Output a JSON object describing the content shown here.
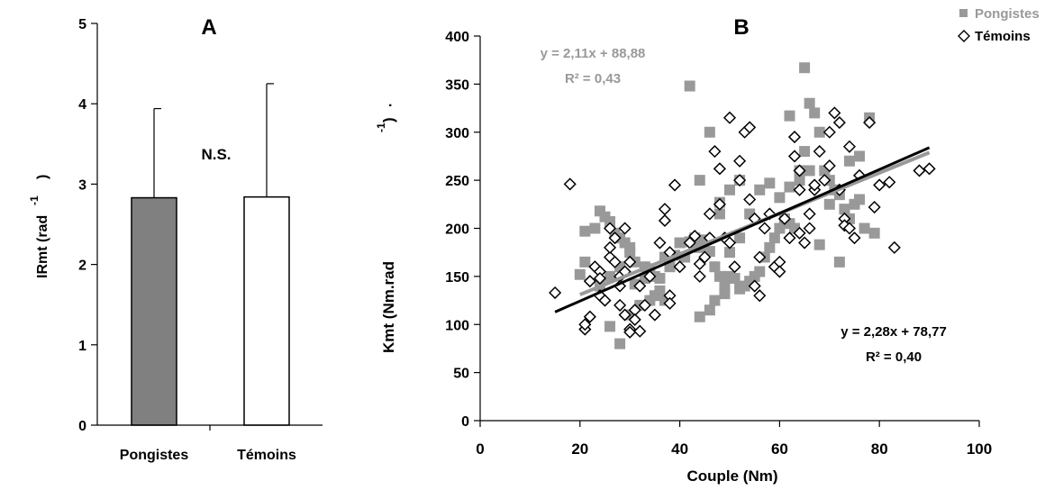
{
  "chart_data": [
    {
      "type": "bar",
      "panel_label": "A",
      "ylabel_main": "IRmt (rad",
      "ylabel_sup": "-1",
      "ylabel_close": ")",
      "ylim": [
        0,
        5
      ],
      "yticks": [
        "0",
        "1",
        "2",
        "3",
        "4",
        "5"
      ],
      "categories": [
        "Pongistes",
        "Témoins"
      ],
      "values": [
        2.83,
        2.84
      ],
      "errors_upper": [
        3.94,
        4.25
      ],
      "bar_colors": [
        "#808080",
        "#ffffff"
      ],
      "annotation": "N.S."
    },
    {
      "type": "scatter",
      "panel_label": "B",
      "xlabel": "Couple (Nm)",
      "ylabel_main": "Kmt (Nm.rad",
      "ylabel_sup": "-1",
      "ylabel_close": ")",
      "xlim": [
        0,
        100
      ],
      "ylim": [
        0,
        400
      ],
      "xticks": [
        "0",
        "20",
        "40",
        "60",
        "80",
        "100"
      ],
      "yticks": [
        "0",
        "50",
        "100",
        "150",
        "200",
        "250",
        "300",
        "350",
        "400"
      ],
      "legend_position": "top-right",
      "series": [
        {
          "name": "Pongistes",
          "marker": "square",
          "color": "#999999",
          "equation": "y = 2,11x + 88,88",
          "r2": "R² = 0,43",
          "fit": {
            "slope": 2.11,
            "intercept": 88.88,
            "x_range": [
              20,
              90
            ]
          },
          "points": [
            [
              20,
              152
            ],
            [
              21,
              165
            ],
            [
              21,
              197
            ],
            [
              23,
              200
            ],
            [
              24,
              218
            ],
            [
              25,
              212
            ],
            [
              26,
              207
            ],
            [
              27,
              195
            ],
            [
              28,
              190
            ],
            [
              29,
              185
            ],
            [
              30,
              180
            ],
            [
              30,
              175
            ],
            [
              31,
              165
            ],
            [
              33,
              160
            ],
            [
              34,
              158
            ],
            [
              35,
              150
            ],
            [
              36,
              148
            ],
            [
              37,
              170
            ],
            [
              38,
              160
            ],
            [
              39,
              172
            ],
            [
              40,
              185
            ],
            [
              41,
              170
            ],
            [
              42,
              186
            ],
            [
              43,
              190
            ],
            [
              44,
              180
            ],
            [
              45,
              188
            ],
            [
              46,
              176
            ],
            [
              47,
              160
            ],
            [
              48,
              150
            ],
            [
              49,
              140
            ],
            [
              50,
              150
            ],
            [
              51,
              148
            ],
            [
              52,
              137
            ],
            [
              53,
              140
            ],
            [
              54,
              145
            ],
            [
              55,
              150
            ],
            [
              56,
              155
            ],
            [
              57,
              170
            ],
            [
              58,
              180
            ],
            [
              59,
              190
            ],
            [
              60,
              200
            ],
            [
              61,
              210
            ],
            [
              62,
              205
            ],
            [
              63,
              200
            ],
            [
              64,
              250
            ],
            [
              65,
              280
            ],
            [
              66,
              330
            ],
            [
              67,
              320
            ],
            [
              68,
              300
            ],
            [
              69,
              260
            ],
            [
              70,
              250
            ],
            [
              71,
              240
            ],
            [
              72,
              235
            ],
            [
              73,
              220
            ],
            [
              74,
              210
            ],
            [
              75,
              225
            ],
            [
              76,
              230
            ],
            [
              77,
              200
            ],
            [
              78,
              315
            ],
            [
              79,
              195
            ],
            [
              42,
              348
            ],
            [
              44,
              250
            ],
            [
              46,
              300
            ],
            [
              65,
              367
            ],
            [
              62,
              317
            ],
            [
              72,
              165
            ],
            [
              68,
              183
            ],
            [
              44,
              108
            ],
            [
              46,
              115
            ],
            [
              28,
              80
            ],
            [
              26,
              98
            ],
            [
              30,
              110
            ],
            [
              32,
              120
            ],
            [
              34,
              125
            ],
            [
              36,
              135
            ],
            [
              24,
              140
            ],
            [
              26,
              150
            ],
            [
              28,
              160
            ],
            [
              48,
              215
            ],
            [
              50,
              240
            ],
            [
              52,
              250
            ],
            [
              54,
              215
            ],
            [
              56,
              240
            ],
            [
              58,
              247
            ],
            [
              60,
              232
            ],
            [
              62,
              243
            ],
            [
              64,
              260
            ],
            [
              66,
              260
            ],
            [
              70,
              225
            ],
            [
              74,
              270
            ],
            [
              76,
              275
            ],
            [
              50,
              175
            ],
            [
              52,
              190
            ],
            [
              48,
              227
            ],
            [
              47,
              125
            ],
            [
              49,
              132
            ],
            [
              31,
              142
            ],
            [
              33,
              148
            ],
            [
              35,
              130
            ],
            [
              37,
              125
            ]
          ]
        },
        {
          "name": "Témoins",
          "marker": "diamond",
          "color": "#000000",
          "equation": "y = 2,28x + 78,77",
          "r2": "R² = 0,40",
          "fit": {
            "slope": 2.28,
            "intercept": 78.77,
            "x_range": [
              15,
              90
            ]
          },
          "points": [
            [
              15,
              133
            ],
            [
              18,
              246
            ],
            [
              21,
              95
            ],
            [
              21,
              100
            ],
            [
              22,
              108
            ],
            [
              23,
              160
            ],
            [
              24,
              155
            ],
            [
              24,
              130
            ],
            [
              25,
              125
            ],
            [
              26,
              170
            ],
            [
              26,
              180
            ],
            [
              27,
              190
            ],
            [
              27,
              165
            ],
            [
              28,
              150
            ],
            [
              28,
              140
            ],
            [
              29,
              155
            ],
            [
              29,
              200
            ],
            [
              30,
              95
            ],
            [
              30,
              92
            ],
            [
              30,
              165
            ],
            [
              31,
              115
            ],
            [
              31,
              105
            ],
            [
              32,
              140
            ],
            [
              33,
              120
            ],
            [
              34,
              150
            ],
            [
              35,
              110
            ],
            [
              36,
              185
            ],
            [
              37,
              220
            ],
            [
              37,
              208
            ],
            [
              38,
              175
            ],
            [
              38,
              130
            ],
            [
              38,
              122
            ],
            [
              39,
              245
            ],
            [
              40,
              160
            ],
            [
              42,
              185
            ],
            [
              43,
              192
            ],
            [
              44,
              163
            ],
            [
              44,
              150
            ],
            [
              45,
              170
            ],
            [
              46,
              215
            ],
            [
              47,
              280
            ],
            [
              48,
              262
            ],
            [
              48,
              225
            ],
            [
              49,
              190
            ],
            [
              50,
              315
            ],
            [
              50,
              185
            ],
            [
              51,
              160
            ],
            [
              52,
              270
            ],
            [
              52,
              250
            ],
            [
              53,
              300
            ],
            [
              54,
              305
            ],
            [
              54,
              230
            ],
            [
              55,
              210
            ],
            [
              55,
              140
            ],
            [
              56,
              170
            ],
            [
              56,
              130
            ],
            [
              57,
              200
            ],
            [
              58,
              215
            ],
            [
              59,
              160
            ],
            [
              60,
              165
            ],
            [
              60,
              155
            ],
            [
              61,
              210
            ],
            [
              62,
              190
            ],
            [
              63,
              275
            ],
            [
              63,
              295
            ],
            [
              64,
              260
            ],
            [
              64,
              195
            ],
            [
              65,
              185
            ],
            [
              66,
              215
            ],
            [
              66,
              200
            ],
            [
              67,
              240
            ],
            [
              68,
              280
            ],
            [
              69,
              250
            ],
            [
              70,
              300
            ],
            [
              70,
              265
            ],
            [
              71,
              320
            ],
            [
              72,
              310
            ],
            [
              72,
              240
            ],
            [
              73,
              210
            ],
            [
              73,
              203
            ],
            [
              74,
              285
            ],
            [
              74,
              200
            ],
            [
              75,
              190
            ],
            [
              76,
              255
            ],
            [
              78,
              310
            ],
            [
              79,
              222
            ],
            [
              80,
              245
            ],
            [
              82,
              248
            ],
            [
              83,
              180
            ],
            [
              88,
              260
            ],
            [
              90,
              262
            ],
            [
              67,
              245
            ],
            [
              64,
              240
            ],
            [
              46,
              190
            ],
            [
              26,
              200
            ],
            [
              28,
              120
            ],
            [
              29,
              110
            ],
            [
              32,
              93
            ],
            [
              24,
              148
            ],
            [
              22,
              145
            ]
          ]
        }
      ]
    }
  ]
}
